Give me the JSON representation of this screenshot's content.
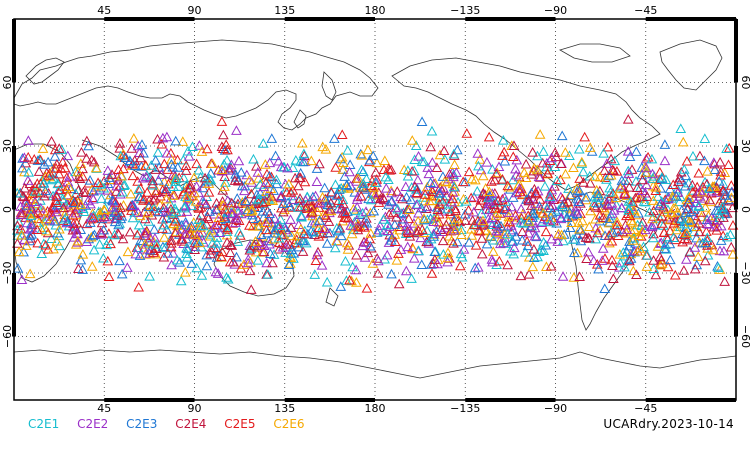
{
  "map": {
    "top_lon_labels": [
      "45",
      "90",
      "135",
      "180",
      "−135",
      "−90",
      "−45"
    ],
    "bottom_lon_labels": [
      "45",
      "90",
      "135",
      "180",
      "−135",
      "−90",
      "−45"
    ],
    "lat_labels": [
      "60",
      "30",
      "0",
      "−30",
      "−60"
    ],
    "right_lat_labels": [
      "60",
      "30",
      "0",
      "−30",
      "−60"
    ],
    "lon_ticks": [
      45,
      90,
      135,
      180,
      225,
      270,
      315
    ],
    "lat_ticks": [
      60,
      30,
      0,
      -30,
      -60
    ],
    "lon_range": [
      0,
      360
    ],
    "lat_range": [
      -90,
      90
    ],
    "grid": "dotted",
    "marker": "open-triangle",
    "observation_band_lat": [
      -45,
      45
    ]
  },
  "legend": {
    "items": [
      {
        "label": "C2E1",
        "color": "#17becf"
      },
      {
        "label": "C2E2",
        "color": "#9b30c8"
      },
      {
        "label": "C2E3",
        "color": "#1f77d4"
      },
      {
        "label": "C2E4",
        "color": "#c0143c"
      },
      {
        "label": "C2E5",
        "color": "#e31a1c"
      },
      {
        "label": "C2E6",
        "color": "#f5a800"
      }
    ]
  },
  "caption": "UCARdry.2023-10-14"
}
